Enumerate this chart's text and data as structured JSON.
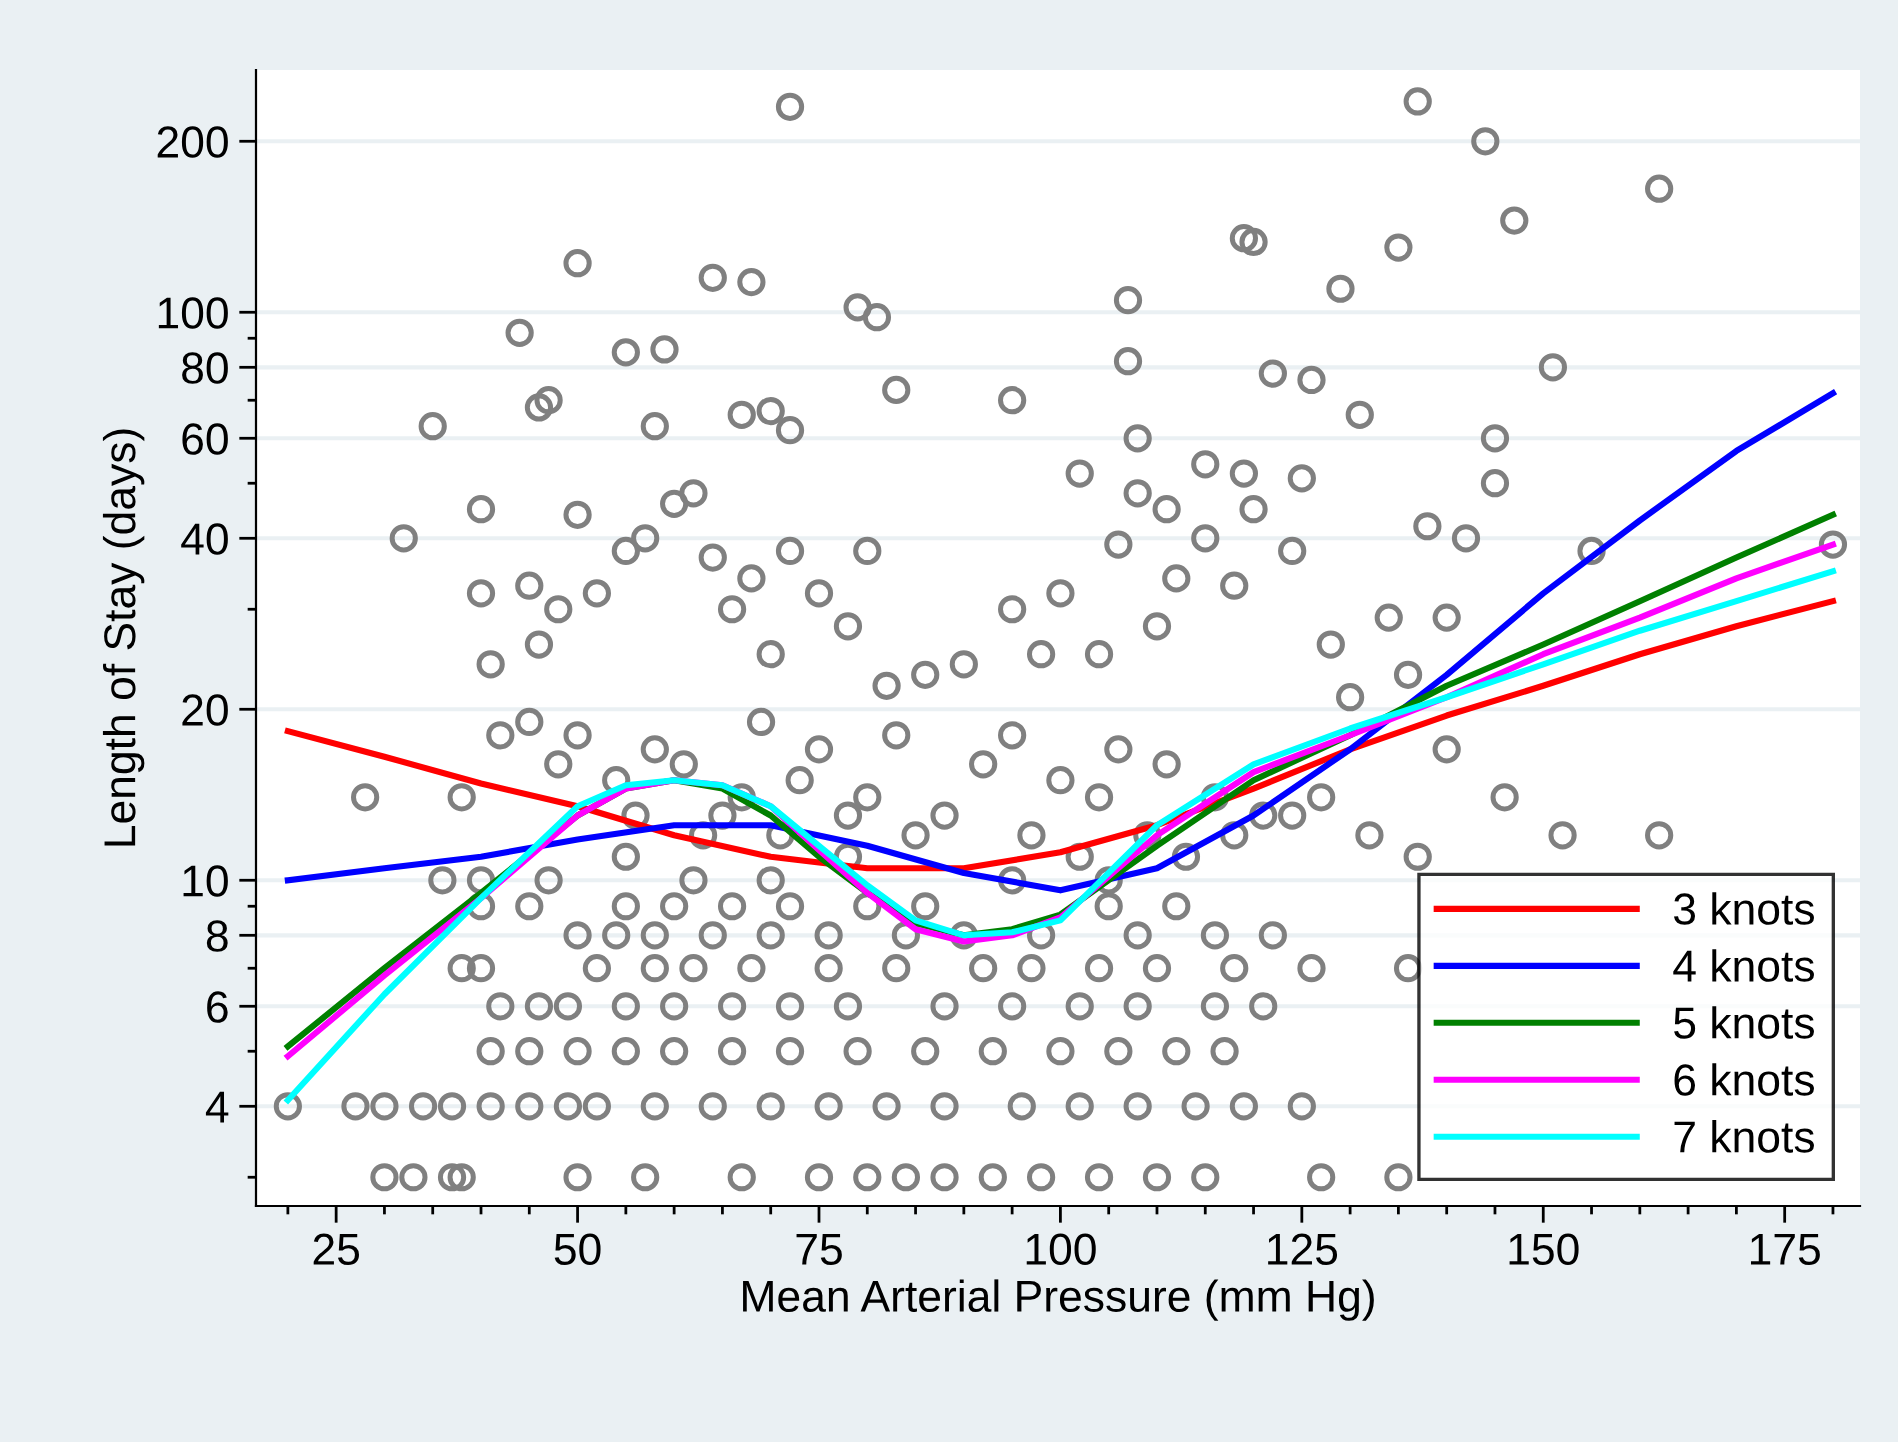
{
  "chart_data": {
    "type": "scatter",
    "xlabel": "Mean Arterial Pressure (mm Hg)",
    "ylabel": "Length of Stay (days)",
    "log": "y",
    "grid": "y",
    "legend": "bottom right",
    "tick_labels": "xy",
    "xlim": [
      16.7,
      182.8
    ],
    "ylim": [
      2.67,
      267
    ],
    "xticks": [
      {
        "value": 20,
        "label": null
      },
      25,
      {
        "value": 30,
        "label": null
      },
      {
        "value": 35,
        "label": null
      },
      {
        "value": 40,
        "label": null
      },
      {
        "value": 45,
        "label": null
      },
      50,
      {
        "value": 55,
        "label": null
      },
      {
        "value": 60,
        "label": null
      },
      {
        "value": 65,
        "label": null
      },
      {
        "value": 70,
        "label": null
      },
      75,
      {
        "value": 80,
        "label": null
      },
      {
        "value": 85,
        "label": null
      },
      {
        "value": 90,
        "label": null
      },
      {
        "value": 95,
        "label": null
      },
      100,
      {
        "value": 105,
        "label": null
      },
      {
        "value": 110,
        "label": null
      },
      {
        "value": 115,
        "label": null
      },
      {
        "value": 120,
        "label": null
      },
      125,
      {
        "value": 130,
        "label": null
      },
      {
        "value": 135,
        "label": null
      },
      {
        "value": 140,
        "label": null
      },
      {
        "value": 145,
        "label": null
      },
      150,
      {
        "value": 155,
        "label": null
      },
      {
        "value": 160,
        "label": null
      },
      {
        "value": 165,
        "label": null
      },
      {
        "value": 170,
        "label": null
      },
      175,
      {
        "value": 180,
        "label": null
      }
    ],
    "yticks": [
      {
        "value": 3,
        "label": null
      },
      4,
      {
        "value": 5,
        "label": null
      },
      6,
      {
        "value": 7,
        "label": null
      },
      8,
      {
        "value": 9,
        "label": null
      },
      10,
      20,
      {
        "value": 30,
        "label": null
      },
      40,
      {
        "value": 50,
        "label": null
      },
      60,
      {
        "value": 70,
        "label": null
      },
      80,
      {
        "value": 90,
        "label": null
      },
      100,
      200
    ],
    "series": [
      {
        "color": "#808080",
        "marker": "circle",
        "x": [
          72,
          137,
          144,
          162,
          147,
          119,
          120,
          135,
          129,
          50,
          64,
          68,
          107,
          79,
          81,
          44,
          151,
          122,
          126,
          83,
          95,
          47,
          35,
          55,
          59,
          131,
          67,
          70,
          107,
          108,
          58,
          72,
          119,
          115,
          111,
          46,
          145,
          142,
          155,
          180,
          138,
          145,
          32,
          40,
          40,
          41,
          45,
          46,
          48,
          50,
          52,
          55,
          57,
          60,
          62,
          64,
          66,
          68,
          70,
          72,
          75,
          78,
          80,
          82,
          86,
          90,
          95,
          98,
          100,
          102,
          104,
          106,
          108,
          110,
          112,
          115,
          118,
          120,
          124,
          128,
          130,
          134,
          136,
          140,
          125,
          28,
          38,
          42,
          45,
          48,
          50,
          54,
          56,
          58,
          61,
          63,
          65,
          67,
          69,
          71,
          73,
          75,
          78,
          80,
          83,
          85,
          88,
          92,
          95,
          97,
          100,
          102,
          104,
          106,
          109,
          111,
          113,
          116,
          118,
          121,
          124,
          127,
          132,
          137,
          140,
          146,
          152,
          162,
          36,
          40,
          47,
          55,
          62,
          70,
          78,
          95,
          105,
          40,
          45,
          55,
          60,
          66,
          72,
          80,
          86,
          105,
          112,
          50,
          54,
          58,
          64,
          70,
          76,
          84,
          90,
          98,
          108,
          116,
          122,
          38,
          40,
          52,
          58,
          62,
          68,
          76,
          83,
          92,
          97,
          104,
          110,
          118,
          126,
          136,
          42,
          46,
          49,
          55,
          60,
          66,
          72,
          78,
          88,
          95,
          102,
          108,
          116,
          121,
          41,
          45,
          50,
          55,
          60,
          66,
          72,
          79,
          86,
          93,
          100,
          106,
          112,
          117,
          20,
          27,
          30,
          34,
          37,
          41,
          45,
          49,
          52,
          58,
          64,
          70,
          76,
          82,
          88,
          96,
          102,
          108,
          114,
          119,
          125,
          30,
          33,
          37,
          38,
          50,
          57,
          67,
          75,
          80,
          84,
          88,
          93,
          98,
          104,
          110,
          115,
          127,
          135
        ],
        "values": [
          230,
          235,
          200,
          165,
          145,
          135,
          133,
          130,
          110,
          122,
          115,
          113,
          105,
          102,
          98,
          92,
          80,
          78,
          76,
          73,
          70,
          70,
          63,
          85,
          86,
          66,
          66,
          67,
          82,
          60,
          63,
          62,
          52,
          54,
          45,
          68,
          60,
          40,
          38,
          39,
          42,
          50,
          40,
          45,
          32,
          24,
          33,
          26,
          30,
          44,
          32,
          38,
          40,
          46,
          48,
          37,
          30,
          34,
          25,
          38,
          32,
          28,
          38,
          22,
          23,
          24,
          30,
          25,
          32,
          52,
          25,
          39,
          48,
          28,
          34,
          40,
          33,
          45,
          38,
          26,
          21,
          29,
          23,
          29,
          51,
          14,
          14,
          18,
          19,
          16,
          18,
          15,
          13,
          17,
          16,
          12,
          13,
          14,
          19,
          12,
          15,
          17,
          13,
          14,
          18,
          12,
          13,
          16,
          18,
          12,
          15,
          11,
          14,
          17,
          12,
          16,
          11,
          14,
          12,
          13,
          13,
          14,
          12,
          11,
          17,
          14,
          12,
          12,
          10,
          10,
          10,
          11,
          10,
          10,
          11,
          10,
          10,
          9,
          9,
          9,
          9,
          9,
          9,
          9,
          9,
          9,
          9,
          8,
          8,
          8,
          8,
          8,
          8,
          8,
          8,
          8,
          8,
          8,
          8,
          7,
          7,
          7,
          7,
          7,
          7,
          7,
          7,
          7,
          7,
          7,
          7,
          7,
          7,
          7,
          6,
          6,
          6,
          6,
          6,
          6,
          6,
          6,
          6,
          6,
          6,
          6,
          6,
          6,
          5,
          5,
          5,
          5,
          5,
          5,
          5,
          5,
          5,
          5,
          5,
          5,
          5,
          5,
          4,
          4,
          4,
          4,
          4,
          4,
          4,
          4,
          4,
          4,
          4,
          4,
          4,
          4,
          4,
          4,
          4,
          4,
          4,
          4,
          4,
          3,
          3,
          3,
          3,
          3,
          3,
          3,
          3,
          3,
          3,
          3,
          3,
          3,
          3,
          3,
          3,
          3,
          3
        ]
      },
      {
        "type": "line",
        "name": "3 knots",
        "color": "#ff0000",
        "line_style": "solid",
        "marker": "none",
        "x": [
          20,
          30,
          40,
          50,
          60,
          70,
          80,
          90,
          100,
          110,
          120,
          130,
          140,
          150,
          160,
          170,
          180
        ],
        "values": [
          18.3,
          16.5,
          14.8,
          13.5,
          12,
          11,
          10.5,
          10.5,
          11.2,
          12.5,
          14.5,
          17,
          19.5,
          22,
          25,
          28,
          31
        ]
      },
      {
        "type": "line",
        "name": "4 knots",
        "color": "#0000ff",
        "line_style": "solid",
        "marker": "none",
        "x": [
          20,
          30,
          40,
          50,
          60,
          70,
          80,
          90,
          100,
          110,
          120,
          130,
          140,
          150,
          160,
          170,
          180
        ],
        "values": [
          10,
          10.5,
          11,
          11.8,
          12.5,
          12.5,
          11.5,
          10.3,
          9.6,
          10.5,
          13,
          17,
          23,
          32,
          43,
          57,
          72
        ]
      },
      {
        "type": "line",
        "name": "5 knots",
        "color": "#008000",
        "line_style": "solid",
        "marker": "none",
        "x": [
          20,
          30,
          40,
          50,
          55,
          60,
          65,
          70,
          75,
          80,
          85,
          90,
          95,
          100,
          110,
          120,
          130,
          140,
          150,
          160,
          170,
          180
        ],
        "values": [
          5.1,
          7,
          9.5,
          13,
          14.5,
          15,
          14.5,
          13,
          11,
          9.5,
          8.4,
          8,
          8.2,
          8.7,
          11.5,
          15,
          18,
          22,
          26,
          31,
          37,
          44
        ]
      },
      {
        "type": "line",
        "name": "6 knots",
        "color": "#ff00ff",
        "line_style": "solid",
        "marker": "none",
        "x": [
          20,
          30,
          40,
          50,
          55,
          60,
          65,
          70,
          75,
          80,
          85,
          90,
          95,
          100,
          110,
          120,
          130,
          140,
          150,
          160,
          170,
          180
        ],
        "values": [
          4.9,
          6.8,
          9.3,
          13,
          14.5,
          15,
          14.7,
          13.5,
          11.3,
          9.5,
          8.2,
          7.8,
          8,
          8.6,
          12,
          15.5,
          18,
          21,
          25,
          29,
          34,
          39
        ]
      },
      {
        "type": "line",
        "name": "7 knots",
        "color": "#00ffff",
        "line_style": "solid",
        "marker": "none",
        "x": [
          20,
          30,
          40,
          50,
          55,
          60,
          65,
          70,
          75,
          80,
          85,
          90,
          95,
          100,
          110,
          120,
          130,
          140,
          150,
          160,
          170,
          180
        ],
        "values": [
          4.1,
          6.3,
          9.3,
          13.5,
          14.7,
          15,
          14.7,
          13.5,
          11.5,
          9.8,
          8.5,
          8,
          8.1,
          8.5,
          12.5,
          16,
          18.5,
          21,
          24,
          27.5,
          31,
          35
        ]
      }
    ]
  }
}
